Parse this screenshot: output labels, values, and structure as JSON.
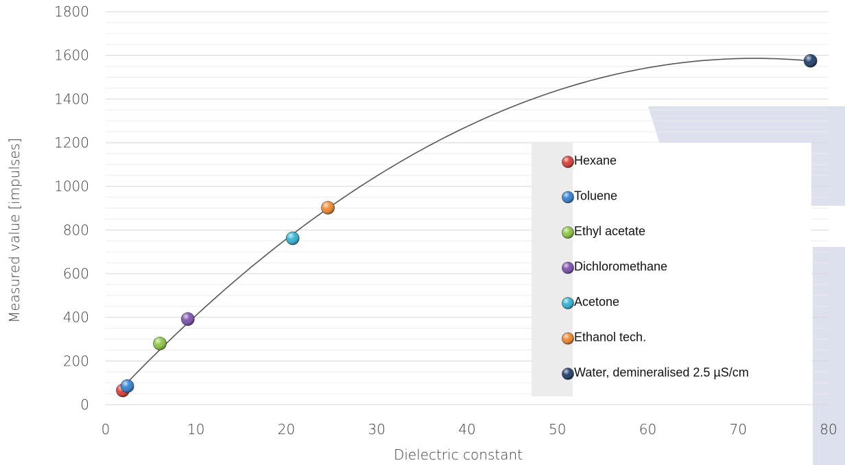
{
  "chart_data": {
    "type": "scatter",
    "xlabel": "Dielectric constant",
    "ylabel": "Measured value [impulses]",
    "xlim": [
      0,
      80
    ],
    "ylim": [
      0,
      1800
    ],
    "x_ticks": [
      "0",
      "10",
      "20",
      "30",
      "40",
      "50",
      "60",
      "70",
      "80"
    ],
    "y_ticks": [
      "0",
      "200",
      "400",
      "600",
      "800",
      "1000",
      "1200",
      "1400",
      "1600",
      "1800"
    ],
    "grid": "horizontal",
    "legend_position": "right",
    "series": [
      {
        "name": "Hexane",
        "color": "#d93a32",
        "x": [
          1.9
        ],
        "y": [
          65
        ]
      },
      {
        "name": "Toluene",
        "color": "#2f7fd1",
        "x": [
          2.4
        ],
        "y": [
          85
        ]
      },
      {
        "name": "Ethyl acetate",
        "color": "#8cc63f",
        "x": [
          6.0
        ],
        "y": [
          280
        ]
      },
      {
        "name": "Dichloromethane",
        "color": "#7b4fae",
        "x": [
          9.1
        ],
        "y": [
          392
        ]
      },
      {
        "name": "Acetone",
        "color": "#2fb2d3",
        "x": [
          20.7
        ],
        "y": [
          762
        ]
      },
      {
        "name": "Ethanol tech.",
        "color": "#f0862a",
        "x": [
          24.6
        ],
        "y": [
          902
        ]
      },
      {
        "name": "Water, demineralised 2.5 µS/cm",
        "color": "#1d3a66",
        "x": [
          78.0
        ],
        "y": [
          1575
        ]
      }
    ],
    "trend_line": {
      "type": "polynomial",
      "color": "#555555"
    }
  }
}
